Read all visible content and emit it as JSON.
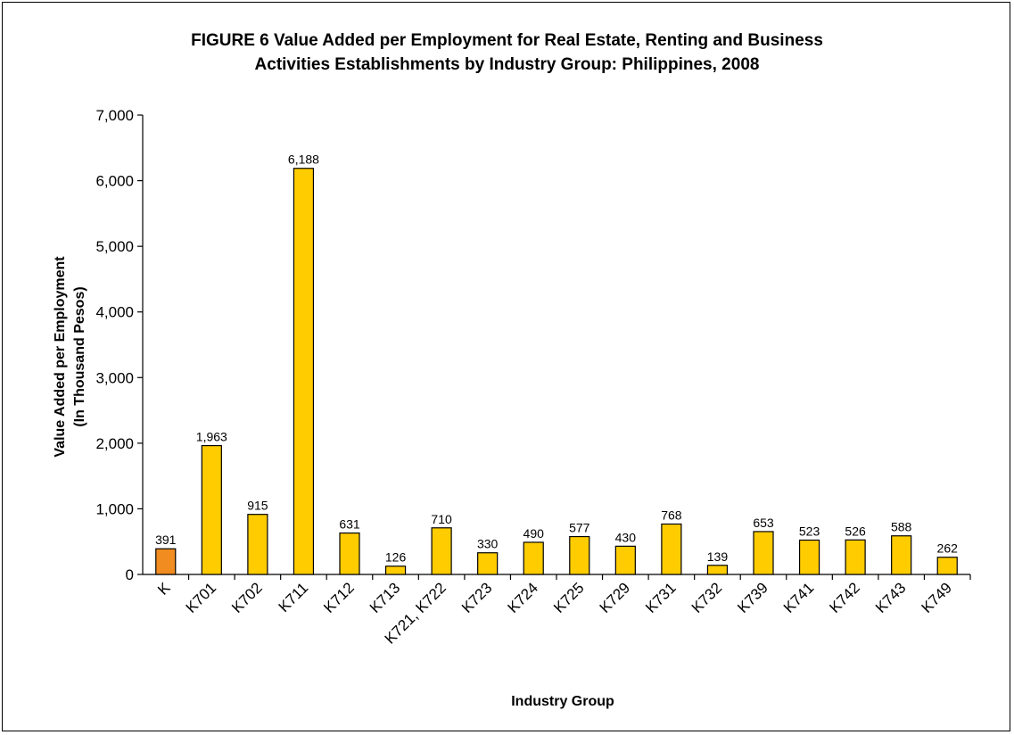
{
  "chart_data": {
    "type": "bar",
    "title_line1": "FIGURE 6  Value Added per Employment for Real Estate, Renting and Business",
    "title_line2": "Activities Establishments by Industry Group: Philippines, 2008",
    "xlabel": "Industry Group",
    "ylabel_line1": "Value Added per Employment",
    "ylabel_line2": "(In Thousand Pesos)",
    "categories": [
      "K",
      "K701",
      "K702",
      "K711",
      "K712",
      "K713",
      "K721, K722",
      "K723",
      "K724",
      "K725",
      "K729",
      "K731",
      "K732",
      "K739",
      "K741",
      "K742",
      "K743",
      "K749"
    ],
    "values": [
      391,
      1963,
      915,
      6188,
      631,
      126,
      710,
      330,
      490,
      577,
      430,
      768,
      139,
      653,
      523,
      526,
      588,
      262
    ],
    "value_labels": [
      "391",
      "1,963",
      "915",
      "6,188",
      "631",
      "126",
      "710",
      "330",
      "490",
      "577",
      "430",
      "768",
      "139",
      "653",
      "523",
      "526",
      "588",
      "262"
    ],
    "ylim": [
      0,
      7000
    ],
    "yticks": [
      0,
      1000,
      2000,
      3000,
      4000,
      5000,
      6000,
      7000
    ],
    "ytick_labels": [
      "0",
      "1,000",
      "2,000",
      "3,000",
      "4,000",
      "5,000",
      "6,000",
      "7,000"
    ],
    "grid": false,
    "colors": {
      "total_bar": "#F08C20",
      "bar": "#FFCC00",
      "bar_stroke": "#000000"
    }
  }
}
